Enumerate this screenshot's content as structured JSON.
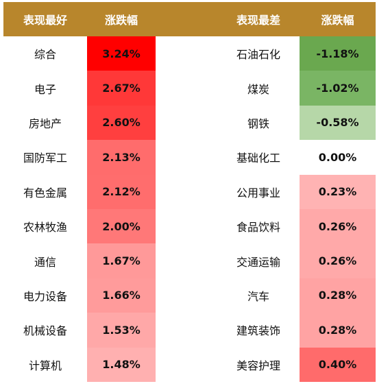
{
  "header": {
    "best_label": "表现最好",
    "best_change_label": "涨跌幅",
    "worst_label": "表现最差",
    "worst_change_label": "涨跌幅"
  },
  "rows": [
    {
      "best_name": "综合",
      "best_change": "3.24%",
      "best_color": "#ff0000",
      "worst_name": "石油石化",
      "worst_change": "-1.18%",
      "worst_color": "#6aa84f"
    },
    {
      "best_name": "电子",
      "best_change": "2.67%",
      "best_color": "#ff3838",
      "worst_name": "煤炭",
      "worst_change": "-1.02%",
      "worst_color": "#7ab564"
    },
    {
      "best_name": "房地产",
      "best_change": "2.60%",
      "best_color": "#ff3f3f",
      "worst_name": "钢铁",
      "worst_change": "-0.58%",
      "worst_color": "#b6d7a8"
    },
    {
      "best_name": "国防军工",
      "best_change": "2.13%",
      "best_color": "#ff6c6c",
      "worst_name": "基础化工",
      "worst_change": "0.00%",
      "worst_color": "#ffffff"
    },
    {
      "best_name": "有色金属",
      "best_change": "2.12%",
      "best_color": "#ff6d6d",
      "worst_name": "公用事业",
      "worst_change": "0.23%",
      "worst_color": "#ffb3b3"
    },
    {
      "best_name": "农林牧渔",
      "best_change": "2.00%",
      "best_color": "#ff7878",
      "worst_name": "食品饮料",
      "worst_change": "0.26%",
      "worst_color": "#ffa9a9"
    },
    {
      "best_name": "通信",
      "best_change": "1.67%",
      "best_color": "#ff9999",
      "worst_name": "交通运输",
      "worst_change": "0.26%",
      "worst_color": "#ffa9a9"
    },
    {
      "best_name": "电力设备",
      "best_change": "1.66%",
      "best_color": "#ff9b9b",
      "worst_name": "汽车",
      "worst_change": "0.28%",
      "worst_color": "#ffa3a3"
    },
    {
      "best_name": "机械设备",
      "best_change": "1.53%",
      "best_color": "#ffa8a8",
      "worst_name": "建筑装饰",
      "worst_change": "0.28%",
      "worst_color": "#ffa3a3"
    },
    {
      "best_name": "计算机",
      "best_change": "1.48%",
      "best_color": "#ffb0b0",
      "worst_name": "美容护理",
      "worst_change": "0.40%",
      "worst_color": "#ff6b6b"
    }
  ]
}
